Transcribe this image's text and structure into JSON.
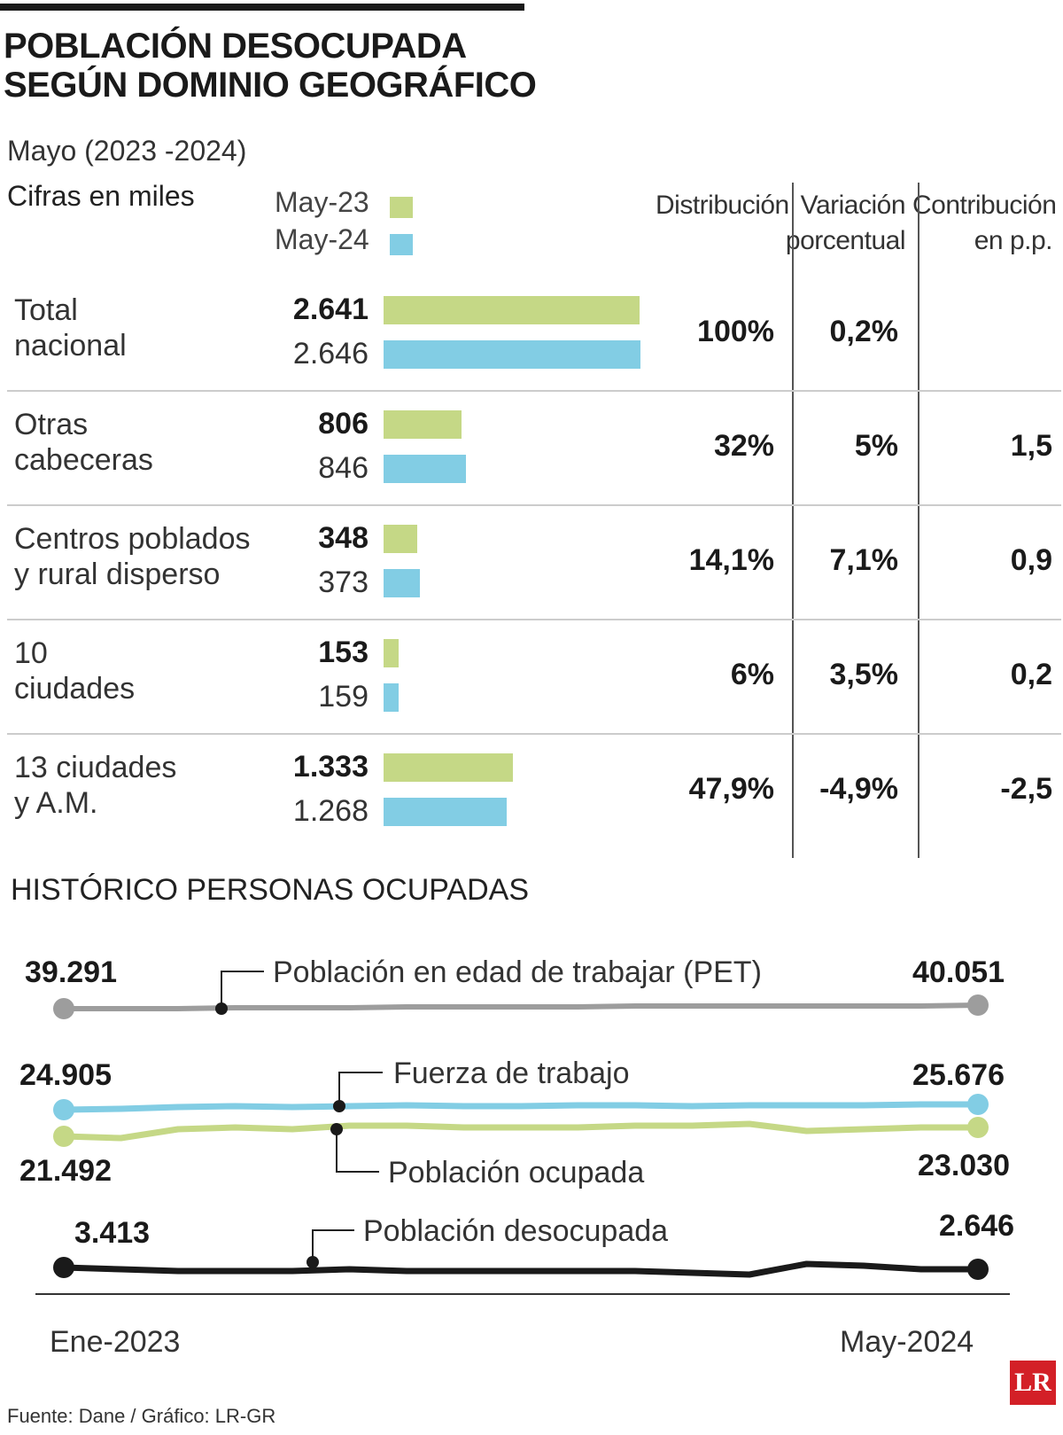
{
  "title_line1": "POBLACIÓN DESOCUPADA",
  "title_line2": "SEGÚN DOMINIO GEOGRÁFICO",
  "subtitle": "Mayo (2023 -2024)",
  "units": "Cifras en miles",
  "legend": {
    "a": "May-23",
    "b": "May-24"
  },
  "colors": {
    "a": "#c5d886",
    "b": "#82cde4",
    "pet": "#9d9d9d",
    "fuerza": "#82cde4",
    "ocupada": "#c5d886",
    "desocupada": "#1a1a1a"
  },
  "columns": {
    "dist": "Distribución",
    "var1": "Variación",
    "var2": "porcentual",
    "contrib1": "Contribución",
    "contrib2": "en p.p."
  },
  "chart_data": [
    {
      "type": "bar",
      "title": "POBLACIÓN DESOCUPADA SEGÚN DOMINIO GEOGRÁFICO",
      "subtitle": "Mayo (2023 -2024)",
      "units": "Cifras en miles",
      "series_names": [
        "May-23",
        "May-24"
      ],
      "rows": [
        {
          "cat1": "Total",
          "cat2": "nacional",
          "a_label": "2.641",
          "b_label": "2.646",
          "a": 2641,
          "b": 2646,
          "dist": "100%",
          "var": "0,2%",
          "contrib": ""
        },
        {
          "cat1": "Otras",
          "cat2": "cabeceras",
          "a_label": "806",
          "b_label": "846",
          "a": 806,
          "b": 846,
          "dist": "32%",
          "var": "5%",
          "contrib": "1,5"
        },
        {
          "cat1": "Centros poblados",
          "cat2": "y rural disperso",
          "a_label": "348",
          "b_label": "373",
          "a": 348,
          "b": 373,
          "dist": "14,1%",
          "var": "7,1%",
          "contrib": "0,9"
        },
        {
          "cat1": "10",
          "cat2": "ciudades",
          "a_label": "153",
          "b_label": "159",
          "a": 153,
          "b": 159,
          "dist": "6%",
          "var": "3,5%",
          "contrib": "0,2"
        },
        {
          "cat1": "13 ciudades",
          "cat2": "y A.M.",
          "a_label": "1.333",
          "b_label": "1.268",
          "a": 1333,
          "b": 1268,
          "dist": "47,9%",
          "var": "-4,9%",
          "contrib": "-2,5"
        }
      ],
      "xmax": 2646
    },
    {
      "type": "line",
      "title": "HISTÓRICO PERSONAS OCUPADAS",
      "x_start": "Ene-2023",
      "x_end": "May-2024",
      "series": [
        {
          "name": "Población en edad de trabajar (PET)",
          "start_label": "39.291",
          "end_label": "40.051",
          "start": 39291,
          "end": 40051
        },
        {
          "name": "Fuerza de trabajo",
          "start_label": "24.905",
          "end_label": "25.676",
          "start": 24905,
          "end": 25676
        },
        {
          "name": "Población ocupada",
          "start_label": "21.492",
          "end_label": "23.030",
          "start": 21492,
          "end": 23030
        },
        {
          "name": "Población desocupada",
          "start_label": "3.413",
          "end_label": "2.646",
          "start": 3413,
          "end": 2646
        }
      ]
    }
  ],
  "source": "Fuente: Dane / Gráfico: LR-GR",
  "logo": "LR"
}
